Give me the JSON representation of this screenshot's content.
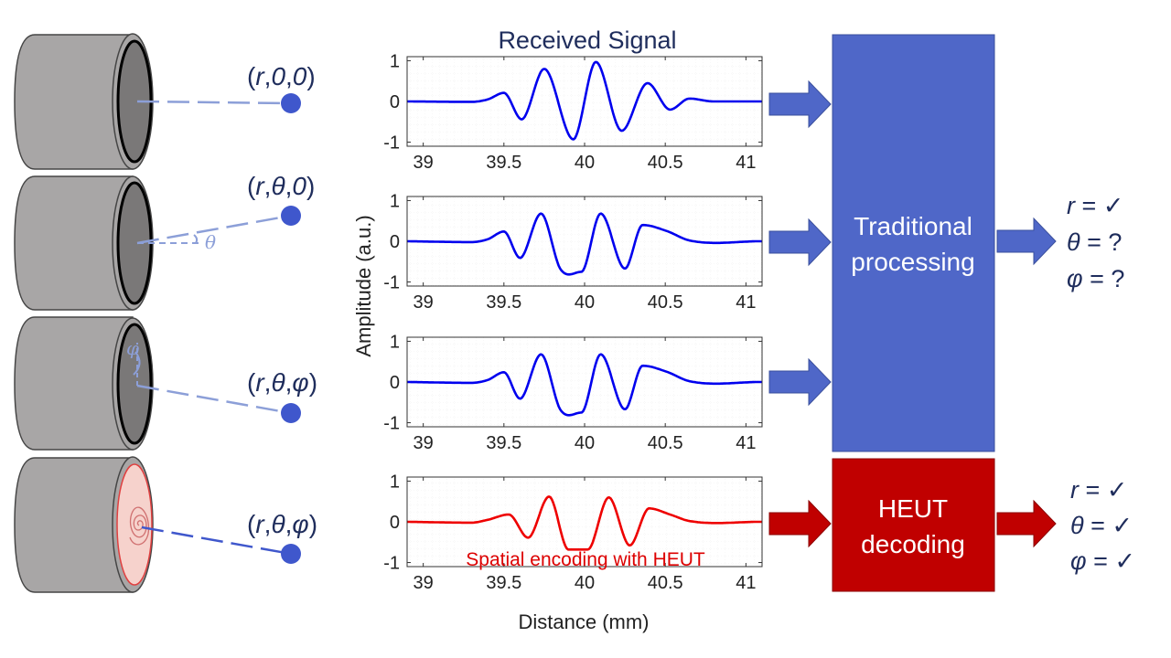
{
  "title": "Received Signal",
  "xlabel": "Distance (mm)",
  "ylabel": "Amplitude (a.u.)",
  "colors": {
    "navy": "#1f2d5c",
    "signal_blue": "#0000ee",
    "signal_red": "#ee0000",
    "block_blue": "#4f67c8",
    "block_red": "#c00000",
    "point": "#3f57cc",
    "line": "#8c9fd8",
    "cylinder_gray": "#a8a6a6",
    "cylinder_face": "#7a7878",
    "heut_face": "#f6d2cc"
  },
  "positions": [
    {
      "pre": "(",
      "r": "r",
      "sep1": ",",
      "a": "0",
      "sep2": ",",
      "b": "0",
      "post": ")"
    },
    {
      "pre": "(",
      "r": "r",
      "sep1": ",",
      "a": "θ",
      "sep2": ",",
      "b": "0",
      "post": ")"
    },
    {
      "pre": "(",
      "r": "r",
      "sep1": ",",
      "a": "θ",
      "sep2": ",",
      "b": "φ",
      "post": ")"
    },
    {
      "pre": "(",
      "r": "r",
      "sep1": ",",
      "a": "θ",
      "sep2": ",",
      "b": "φ",
      "post": ")"
    }
  ],
  "angle_labels": {
    "theta": "θ",
    "phi": "φ"
  },
  "heut_annotation": "Spatial encoding with HEUT",
  "blocks": {
    "traditional": {
      "line1": "Traditional",
      "line2": "processing"
    },
    "heut": {
      "line1": "HEUT",
      "line2": "decoding"
    }
  },
  "results": {
    "traditional": [
      {
        "sym": "r",
        "eq": " = ✓"
      },
      {
        "sym": "θ",
        "eq": " = ?"
      },
      {
        "sym": "φ",
        "eq": " = ?"
      }
    ],
    "heut": [
      {
        "sym": "r",
        "eq": " = ✓"
      },
      {
        "sym": "θ",
        "eq": " = ✓"
      },
      {
        "sym": "φ",
        "eq": " = ✓"
      }
    ]
  },
  "chart_data": {
    "type": "line",
    "title": "Received Signal",
    "xlabel": "Distance (mm)",
    "ylabel": "Amplitude (a.u.)",
    "xlim": [
      38.9,
      41.1
    ],
    "ylim": [
      -1.1,
      1.1
    ],
    "xticks": [
      39,
      39.5,
      40,
      40.5,
      41
    ],
    "yticks": [
      1,
      0,
      -1
    ],
    "xtick_labels": [
      "39",
      "39.5",
      "40",
      "40.5",
      "41"
    ],
    "ytick_labels": [
      "1",
      "0",
      "-1"
    ],
    "grid": true,
    "panels": [
      {
        "color": "#0000ee",
        "x": [
          38.9,
          39.3,
          39.4,
          39.5,
          39.61,
          39.75,
          39.93,
          40.07,
          40.23,
          40.39,
          40.53,
          40.65,
          40.8,
          41.1
        ],
        "y": [
          0,
          -0.01,
          0.05,
          0.21,
          -0.44,
          0.8,
          -0.93,
          0.97,
          -0.72,
          0.45,
          -0.2,
          0.07,
          0,
          0
        ]
      },
      {
        "color": "#0000ee",
        "x": [
          38.9,
          39.3,
          39.4,
          39.5,
          39.6,
          39.73,
          39.85,
          39.98,
          40.1,
          40.25,
          40.36,
          40.51,
          40.65,
          41.1
        ],
        "y": [
          0,
          -0.02,
          0.05,
          0.24,
          -0.41,
          0.68,
          -0.68,
          -0.75,
          0.68,
          -0.67,
          0.4,
          0.25,
          0.02,
          0
        ]
      },
      {
        "color": "#0000ee",
        "x": [
          38.9,
          39.3,
          39.4,
          39.5,
          39.6,
          39.73,
          39.85,
          39.98,
          40.1,
          40.25,
          40.36,
          40.51,
          40.65,
          41.1
        ],
        "y": [
          0,
          -0.02,
          0.05,
          0.24,
          -0.41,
          0.68,
          -0.68,
          -0.75,
          0.68,
          -0.67,
          0.4,
          0.25,
          0.02,
          0
        ]
      },
      {
        "color": "#ee0000",
        "x": [
          38.9,
          39.3,
          39.4,
          39.53,
          39.65,
          39.78,
          39.9,
          40.02,
          40.15,
          40.28,
          40.4,
          40.53,
          40.65,
          41.1
        ],
        "y": [
          0,
          -0.02,
          0.05,
          0.18,
          -0.39,
          0.62,
          -0.68,
          -0.68,
          0.6,
          -0.58,
          0.33,
          0.18,
          0.02,
          0
        ]
      }
    ]
  }
}
